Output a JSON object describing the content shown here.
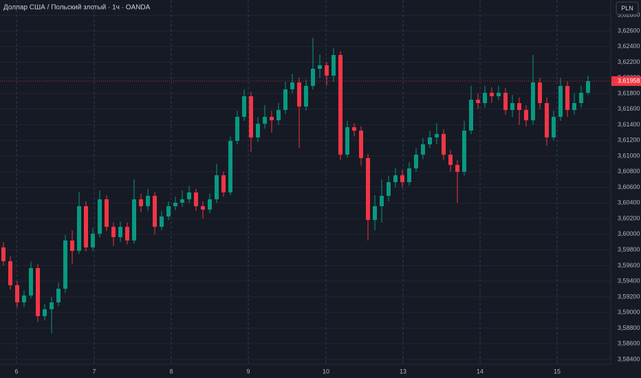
{
  "chart_data": {
    "type": "candlestick",
    "title": "Доллар США / Польский злотый · 1ч · OANDA",
    "currency": "PLN",
    "up_color": "#089981",
    "down_color": "#f23645",
    "grid": true,
    "xlim": [
      -0.5,
      88.3
    ],
    "xticks": [
      {
        "value": 1.9,
        "label": "6"
      },
      {
        "value": 13.2,
        "label": "7"
      },
      {
        "value": 24.4,
        "label": "8"
      },
      {
        "value": 35.6,
        "label": "9"
      },
      {
        "value": 46.9,
        "label": "10"
      },
      {
        "value": 58.1,
        "label": "13"
      },
      {
        "value": 69.3,
        "label": "14"
      },
      {
        "value": 80.5,
        "label": "15"
      }
    ],
    "ylim": [
      3.58338,
      3.62995
    ],
    "yticks": [
      {
        "value": 3.584,
        "label": "3,58400"
      },
      {
        "value": 3.586,
        "label": "3,58600"
      },
      {
        "value": 3.588,
        "label": "3,58800"
      },
      {
        "value": 3.59,
        "label": "3,59000"
      },
      {
        "value": 3.592,
        "label": "3,59200"
      },
      {
        "value": 3.594,
        "label": "3,59400"
      },
      {
        "value": 3.596,
        "label": "3,59600"
      },
      {
        "value": 3.598,
        "label": "3,59800"
      },
      {
        "value": 3.6,
        "label": "3,60000"
      },
      {
        "value": 3.602,
        "label": "3,60200"
      },
      {
        "value": 3.604,
        "label": "3,60400"
      },
      {
        "value": 3.606,
        "label": "3,60600"
      },
      {
        "value": 3.608,
        "label": "3,60800"
      },
      {
        "value": 3.61,
        "label": "3,61000"
      },
      {
        "value": 3.612,
        "label": "3,61200"
      },
      {
        "value": 3.614,
        "label": "3,61400"
      },
      {
        "value": 3.616,
        "label": "3,61600"
      },
      {
        "value": 3.618,
        "label": "3,61800"
      },
      {
        "value": 3.62,
        "label": "3,62000"
      },
      {
        "value": 3.622,
        "label": "3,62200"
      },
      {
        "value": 3.624,
        "label": "3,62400"
      },
      {
        "value": 3.626,
        "label": "3,62600"
      },
      {
        "value": 3.628,
        "label": "3,62800"
      }
    ],
    "last_price": {
      "value": 3.61958,
      "label": "3,61958"
    },
    "open": [
      3.59832,
      3.59656,
      3.59348,
      3.59129,
      3.59217,
      3.59568,
      3.58953,
      3.59041,
      3.59129,
      3.59304,
      3.5992,
      3.59788,
      3.60359,
      3.59832,
      3.60007,
      3.60447,
      3.60095,
      3.59963,
      3.60095,
      3.5992,
      3.60447,
      3.60359,
      3.60491,
      3.60095,
      3.60227,
      3.60359,
      3.60403,
      3.60447,
      3.60535,
      3.60359,
      3.60315,
      3.60447,
      3.60754,
      3.60535,
      3.61194,
      3.61501,
      3.61765,
      3.61238,
      3.61413,
      3.61501,
      3.61457,
      3.61589,
      3.61853,
      3.61941,
      3.61633,
      3.61897,
      3.62116,
      3.6216,
      3.62028,
      3.62292,
      3.61018,
      3.61369,
      3.61325,
      3.60974,
      3.60183,
      3.60359,
      3.60491,
      3.60666,
      3.60754,
      3.60666,
      3.60842,
      3.61018,
      3.6115,
      3.61238,
      3.61282,
      3.61018,
      3.60886,
      3.60798,
      3.61325,
      3.61721,
      3.61677,
      3.61809,
      3.61765,
      3.61809,
      3.61589,
      3.61677,
      3.61589,
      3.61457,
      3.61941,
      3.61677,
      3.61238,
      3.61501,
      3.61897,
      3.61589,
      3.61677,
      3.61809
    ],
    "high": [
      3.599,
      3.5972,
      3.594,
      3.5928,
      3.5965,
      3.5962,
      3.5911,
      3.592,
      3.5938,
      3.5999,
      3.6005,
      3.6054,
      3.6042,
      3.6008,
      3.6056,
      3.605,
      3.6015,
      3.6016,
      3.6015,
      3.607,
      3.6052,
      3.6058,
      3.6054,
      3.603,
      3.6042,
      3.6048,
      3.6056,
      3.6062,
      3.6058,
      3.6042,
      3.6052,
      3.609,
      3.608,
      3.6125,
      3.6158,
      3.6185,
      3.6182,
      3.615,
      3.6165,
      3.6158,
      3.6168,
      3.6195,
      3.6205,
      3.62,
      3.6198,
      3.62512,
      3.623,
      3.622,
      3.6238,
      3.6234,
      3.6145,
      3.6142,
      3.6138,
      3.6103,
      3.605,
      3.607,
      3.6075,
      3.6085,
      3.6082,
      3.6092,
      3.611,
      3.6123,
      3.6132,
      3.6142,
      3.6134,
      3.6108,
      3.6095,
      3.6145,
      3.619,
      3.618,
      3.619,
      3.6188,
      3.619,
      3.6187,
      3.6178,
      3.6175,
      3.6165,
      3.62292,
      3.62,
      3.6175,
      3.6158,
      3.62,
      3.6195,
      3.618,
      3.619,
      3.6203
    ],
    "low": [
      3.596,
      3.5929,
      3.5906,
      3.5907,
      3.5918,
      3.5888,
      3.589,
      3.58733,
      3.5908,
      3.5925,
      3.5962,
      3.5975,
      3.5978,
      3.5979,
      3.5996,
      3.6004,
      3.5985,
      3.599,
      3.5987,
      3.5988,
      3.6028,
      3.603,
      3.6,
      3.6005,
      3.6018,
      3.6031,
      3.6035,
      3.604,
      3.603,
      3.602,
      3.6027,
      3.604,
      3.6048,
      3.605,
      3.6115,
      3.6145,
      3.6105,
      3.6118,
      3.6135,
      3.613,
      3.614,
      3.6154,
      3.618,
      3.611,
      3.6158,
      3.6185,
      3.62,
      3.619,
      3.6195,
      3.6095,
      3.6098,
      3.6125,
      3.6088,
      3.5992,
      3.6005,
      3.6015,
      3.6042,
      3.606,
      3.606,
      3.6062,
      3.608,
      3.6096,
      3.611,
      3.6115,
      3.6095,
      3.608,
      3.604,
      3.6075,
      3.6128,
      3.616,
      3.6162,
      3.6168,
      3.6172,
      3.6153,
      3.615,
      3.614,
      3.6138,
      3.614,
      3.616,
      3.61132,
      3.612,
      3.6145,
      3.615,
      3.6153,
      3.6162,
      3.6178
    ],
    "close": [
      3.59656,
      3.59348,
      3.59129,
      3.59217,
      3.59568,
      3.58953,
      3.59041,
      3.59129,
      3.59304,
      3.5992,
      3.59788,
      3.60359,
      3.59832,
      3.60007,
      3.60447,
      3.60095,
      3.59963,
      3.60095,
      3.5992,
      3.60447,
      3.60359,
      3.60491,
      3.60095,
      3.60227,
      3.60359,
      3.60403,
      3.60447,
      3.60535,
      3.60359,
      3.60315,
      3.60447,
      3.60754,
      3.60535,
      3.61194,
      3.61501,
      3.61765,
      3.61238,
      3.61413,
      3.61501,
      3.61457,
      3.61589,
      3.61853,
      3.61941,
      3.61633,
      3.61897,
      3.62116,
      3.6216,
      3.62028,
      3.62292,
      3.61018,
      3.61369,
      3.61325,
      3.60974,
      3.60183,
      3.60359,
      3.60491,
      3.60666,
      3.60754,
      3.60666,
      3.60842,
      3.61018,
      3.6115,
      3.61238,
      3.61282,
      3.61018,
      3.60886,
      3.60798,
      3.61325,
      3.61721,
      3.61677,
      3.61809,
      3.61765,
      3.61809,
      3.61589,
      3.61677,
      3.61589,
      3.61457,
      3.61941,
      3.61677,
      3.61238,
      3.61501,
      3.61897,
      3.61589,
      3.61677,
      3.61809,
      3.61958
    ]
  }
}
